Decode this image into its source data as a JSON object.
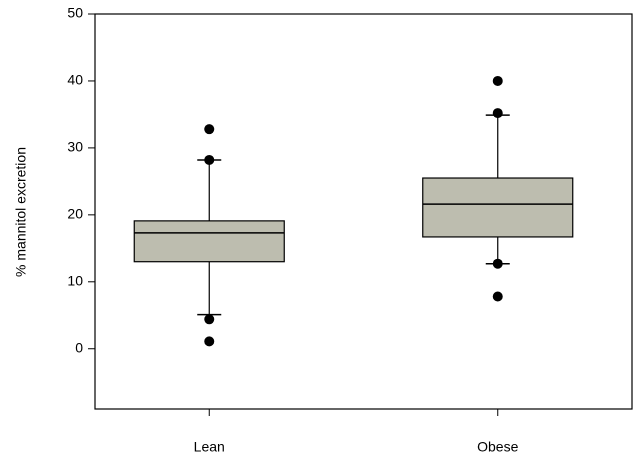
{
  "chart_data": {
    "type": "box",
    "y_label": "% mannitol excretion",
    "categories": [
      "Lean",
      "Obese"
    ],
    "color": "#bdbdaf",
    "boxes": [
      {
        "min": 5.1,
        "q1": 13,
        "median": 17.3,
        "q3": 19.1,
        "max": 28.2,
        "outliers": [
          32.8,
          28.2,
          4.4,
          1.1
        ]
      },
      {
        "min": 12.7,
        "q1": 16.7,
        "median": 21.6,
        "q3": 25.5,
        "max": 34.9,
        "outliers": [
          40,
          35.2,
          12.7,
          7.8
        ]
      }
    ],
    "ylim": [
      -9,
      50
    ],
    "yticks": [
      0,
      10,
      20,
      30,
      40,
      50
    ]
  }
}
